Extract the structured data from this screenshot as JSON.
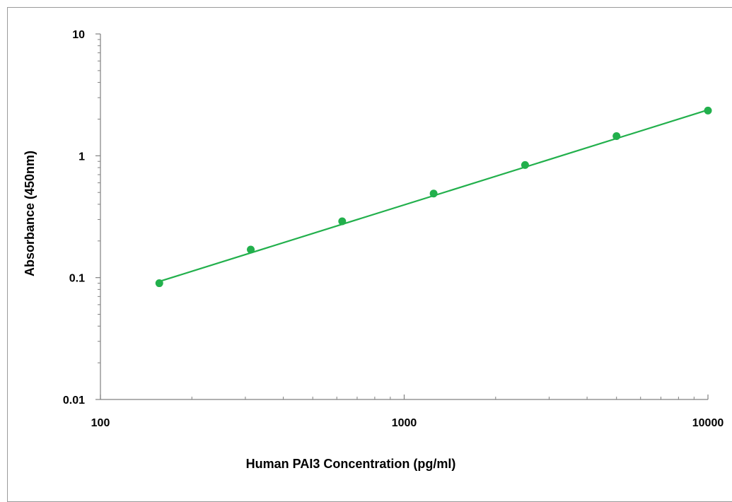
{
  "chart_data": {
    "type": "scatter",
    "title": "",
    "xlabel": "Human PAI3 Concentration (pg/ml)",
    "ylabel": "Absorbance (450nm)",
    "x_scale": "log",
    "y_scale": "log",
    "xlim": [
      100,
      10000
    ],
    "ylim": [
      0.01,
      10
    ],
    "x_tick_labels": [
      "100",
      "1000",
      "10000"
    ],
    "y_tick_labels": [
      "0.01",
      "0.1",
      "1",
      "10"
    ],
    "grid": false,
    "legend": "none",
    "series": [
      {
        "x": [
          156.25,
          312.5,
          625,
          1250,
          2500,
          5000,
          10000
        ],
        "y": [
          0.09,
          0.17,
          0.29,
          0.49,
          0.84,
          1.45,
          2.35
        ]
      }
    ],
    "fit_line": {
      "x": [
        156.25,
        10000
      ],
      "y": [
        0.093,
        2.38
      ]
    },
    "colors": {
      "series": "#22b04c",
      "axis": "#808080",
      "frame": "#9a9a9a"
    }
  }
}
